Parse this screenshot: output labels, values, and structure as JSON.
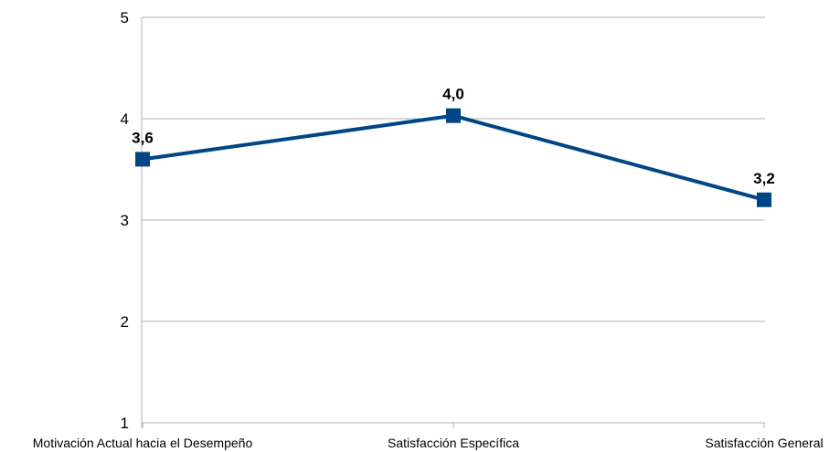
{
  "chart_data": {
    "type": "line",
    "categories": [
      "Motivación Actual hacia el Desempeño",
      "Satisfacción Específica",
      "Satisfacción General"
    ],
    "series": [
      {
        "values": [
          3.6,
          4.03,
          3.2
        ],
        "labels": [
          "3,6",
          "4,0",
          "3,2"
        ],
        "color": "#004586"
      }
    ],
    "y_ticks": [
      "1",
      "2",
      "3",
      "4",
      "5"
    ],
    "ylim": [
      1,
      5
    ],
    "grid": true,
    "legend": "none",
    "title": "",
    "xlabel": "",
    "ylabel": ""
  },
  "colors": {
    "gridline": "#b3b3b3",
    "axis": "#b3b3b3"
  }
}
